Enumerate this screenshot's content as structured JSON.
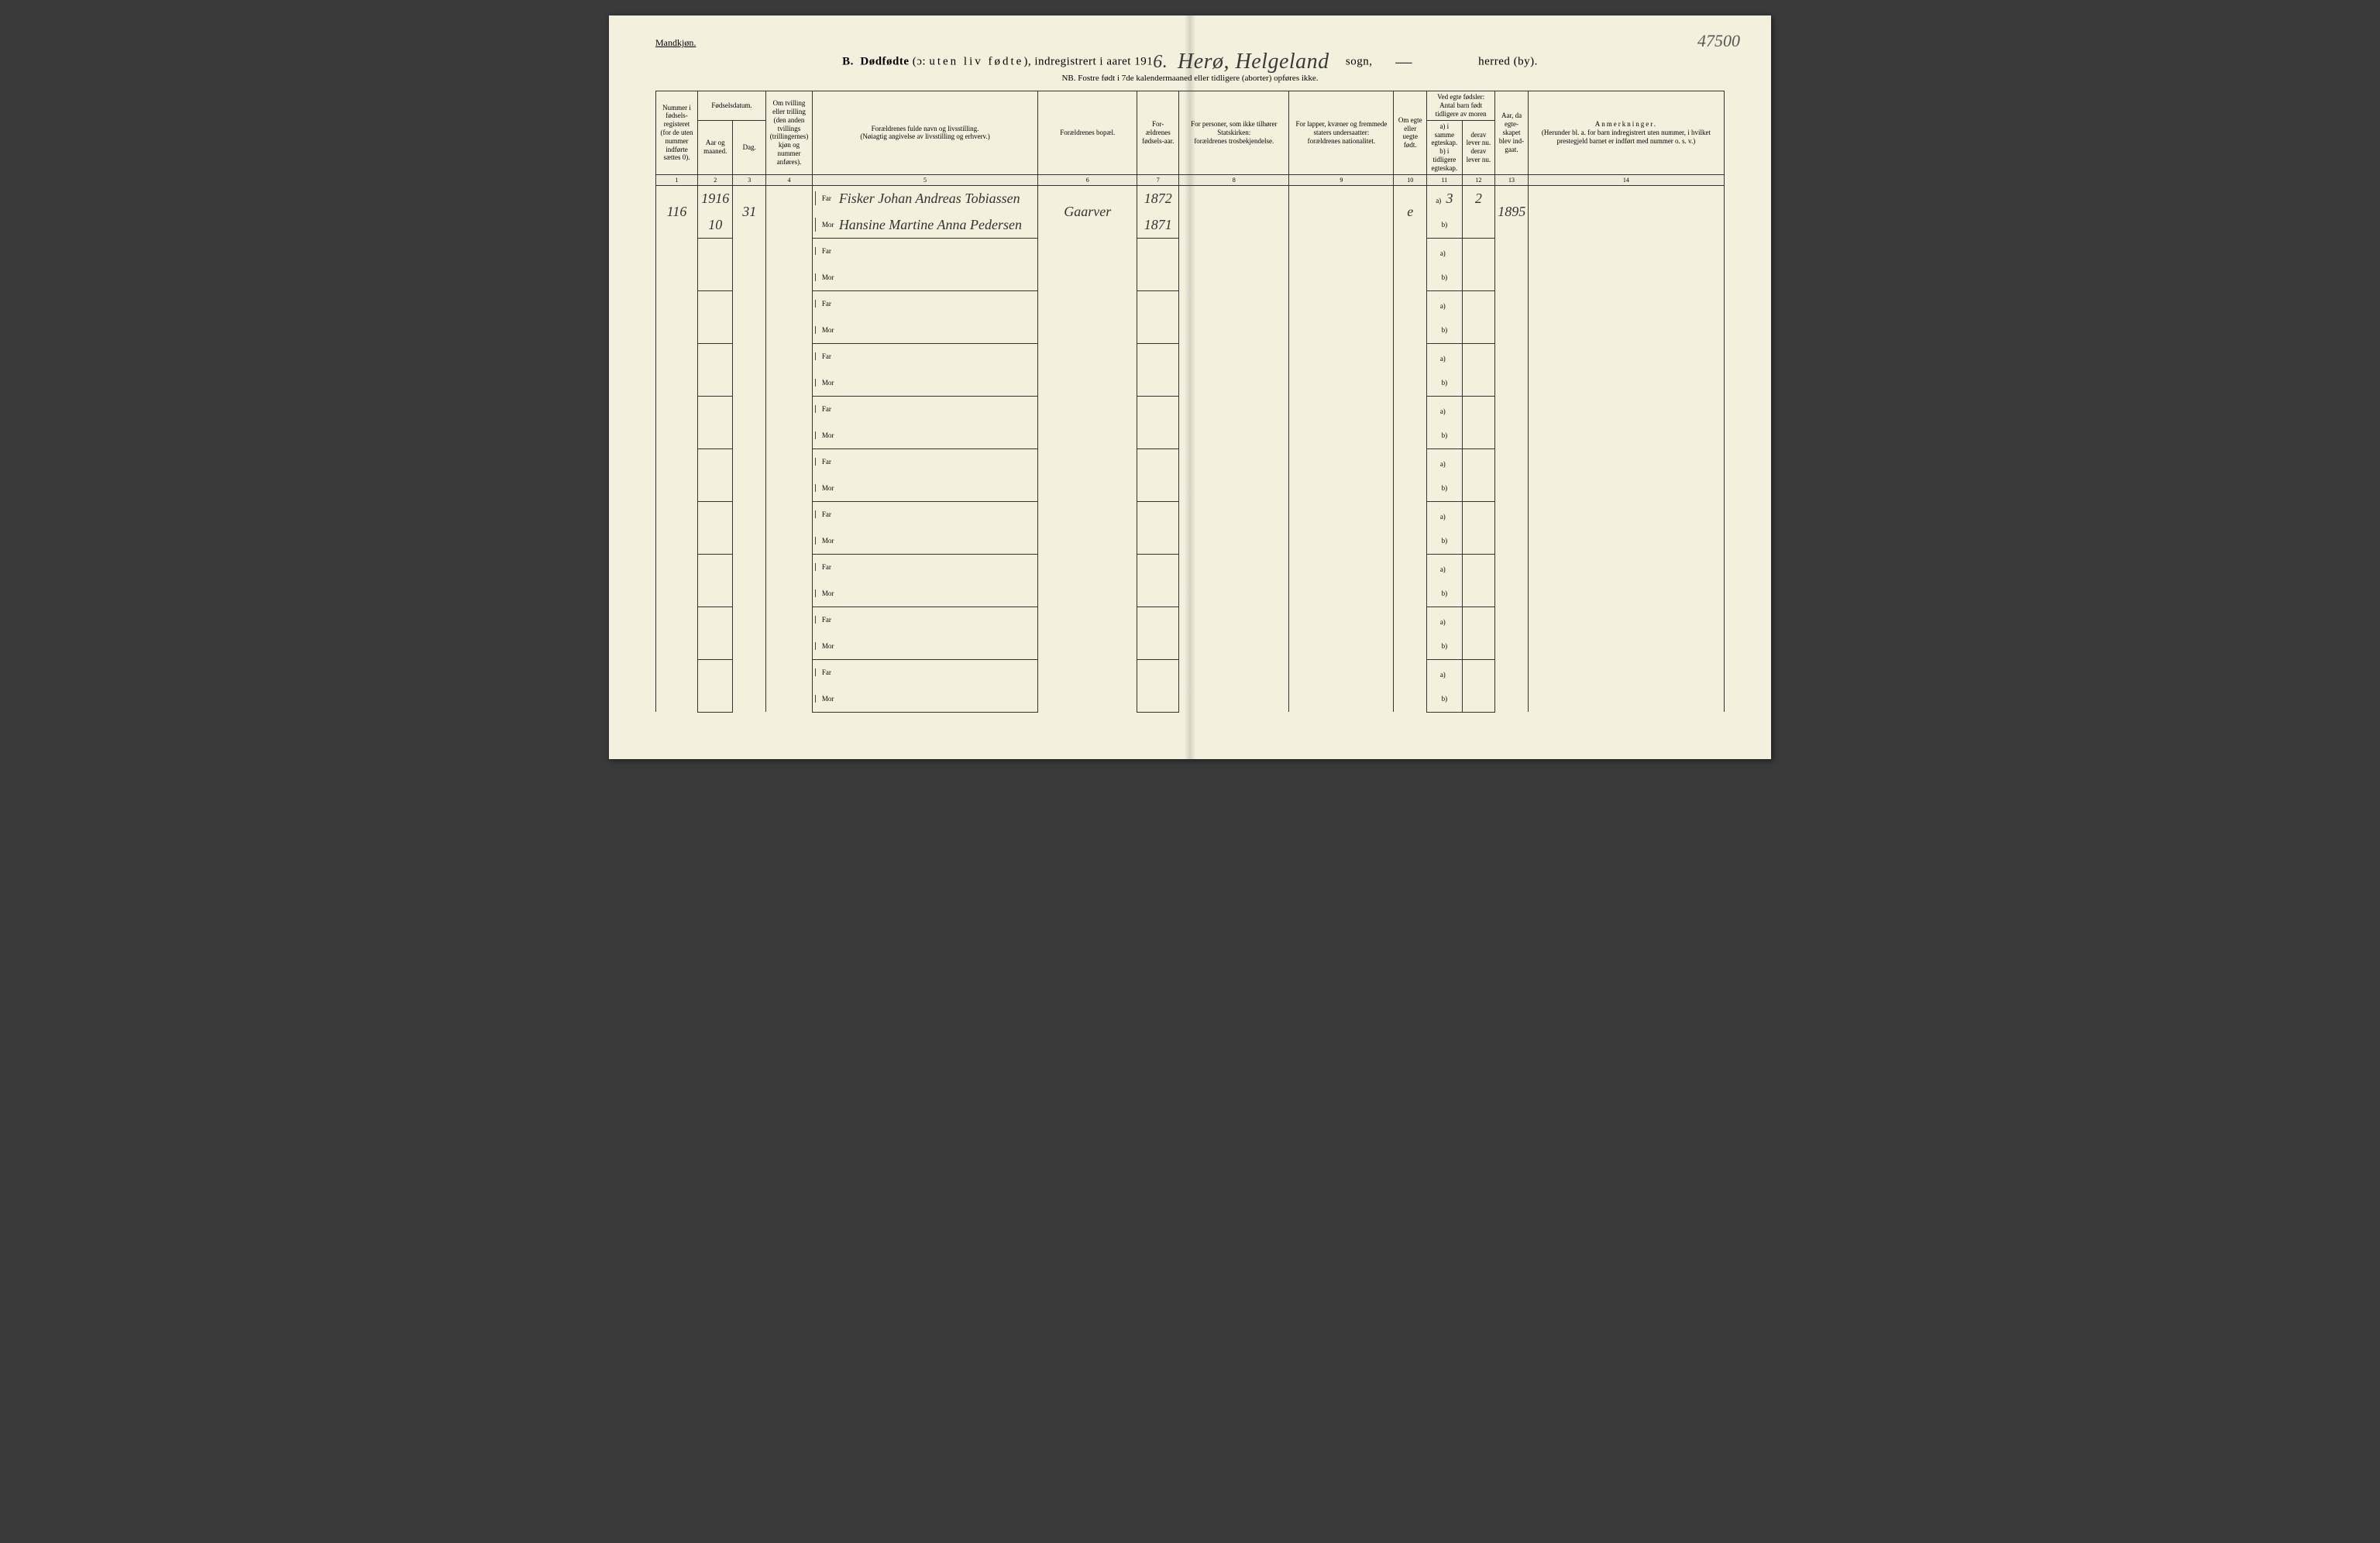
{
  "cornerNote": "47500",
  "topLabel": "Mandkjøn.",
  "title": {
    "prefix": "B.",
    "main": "Dødfødte",
    "paren": "(ɔ: uten liv fødte),",
    "reg": "indregistrert i aaret 191",
    "yearDigit": "6.",
    "sognHand": "Herø, Helgeland",
    "sognLabel": "sogn,",
    "herredHand": "—",
    "herredLabel": "herred (by)."
  },
  "subtitle": "NB. Fostre født i 7de kalendermaaned eller tidligere (aborter) opføres ikke.",
  "headers": {
    "c1": "Nummer i fødsels-registeret (for de uten nummer indførte sættes 0).",
    "c2top": "Fødselsdatum.",
    "c2a": "Aar og maaned.",
    "c2b": "Dag.",
    "c4": "Om tvilling eller trilling (den anden tvillings (trillingernes) kjøn og nummer anføres).",
    "c5a": "Forældrenes fulde navn og livsstilling.",
    "c5b": "(Nøiagtig angivelse av livsstilling og erhverv.)",
    "c6": "Forældrenes bopæl.",
    "c7": "For-ældrenes fødsels-aar.",
    "c8a": "For personer, som ikke tilhører Statskirken:",
    "c8b": "forældrenes trosbekjendelse.",
    "c9a": "For lapper, kvæner og fremmede staters undersaatter:",
    "c9b": "forældrenes nationalitet.",
    "c10": "Om egte eller uegte født.",
    "c11top": "Ved egte fødsler: Antal barn født tidligere av moren",
    "c11a": "a) i samme egteskap.",
    "c11b": "b) i tidligere egteskap.",
    "c12": "derav lever nu.",
    "c12b": "derav lever nu.",
    "c13": "Aar, da egte-skapet blev ind-gaat.",
    "c14a": "Anmerkninger.",
    "c14b": "(Herunder bl. a. for barn indregistrert uten nummer, i hvilket prestegjeld barnet er indført med nummer o. s. v.)"
  },
  "colnums": [
    "1",
    "2",
    "3",
    "4",
    "5",
    "6",
    "7",
    "8",
    "9",
    "10",
    "11",
    "12",
    "13",
    "14"
  ],
  "farLabel": "Far",
  "morLabel": "Mor",
  "aLabel": "a)",
  "bLabel": "b)",
  "row1": {
    "num": "116",
    "yearTop": "1916",
    "month": "10",
    "day": "31",
    "farName": "Fisker Johan Andreas Tobiassen",
    "morName": "Hansine Martine Anna Pedersen",
    "bopael": "Gaarver",
    "farYear": "1872",
    "morYear": "1871",
    "egte": "e",
    "a": "3",
    "lever": "2",
    "aar": "1895"
  }
}
